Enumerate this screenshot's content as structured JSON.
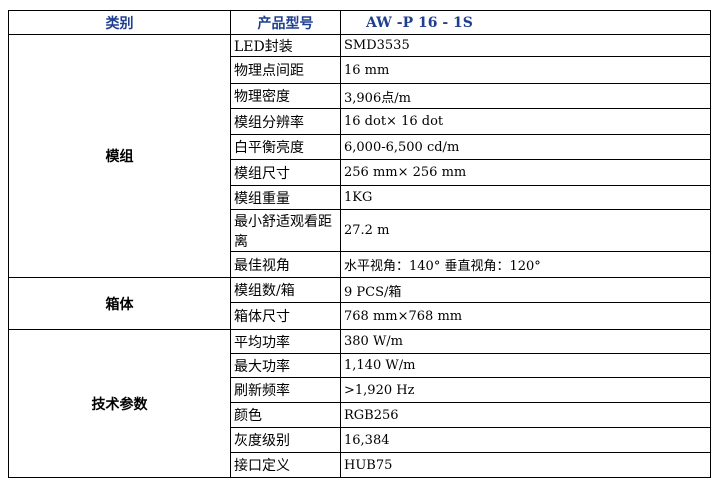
{
  "header": {
    "category": "类别",
    "model_label": "产品型号",
    "model_value": "AW -P 16 - 1S"
  },
  "groups": [
    {
      "name": "模组",
      "rows": [
        {
          "label": "LED封装",
          "value": "SMD3535"
        },
        {
          "label": "物理点间距",
          "value": "16 mm"
        },
        {
          "label": "物理密度",
          "value": "3,906点/m"
        },
        {
          "label": "模组分辨率",
          "value": "16 dot× 16 dot"
        },
        {
          "label": "白平衡亮度",
          "value": "6,000-6,500 cd/m"
        },
        {
          "label": "模组尺寸",
          "value": "256 mm× 256 mm"
        },
        {
          "label": "模组重量",
          "value": "1KG"
        },
        {
          "label": "最小舒适观看距离",
          "value": "27.2 m"
        },
        {
          "label": "最佳视角",
          "value": "水平视角：140° 垂直视角：120°"
        }
      ]
    },
    {
      "name": "箱体",
      "rows": [
        {
          "label": "模组数/箱",
          "value": "9 PCS/箱"
        },
        {
          "label": "箱体尺寸",
          "value": "768 mm×768 mm"
        }
      ]
    },
    {
      "name": "技术参数",
      "rows": [
        {
          "label": "平均功率",
          "value": "380 W/m"
        },
        {
          "label": "最大功率",
          "value": "1,140 W/m"
        },
        {
          "label": "刷新频率",
          "value": ">1,920 Hz"
        },
        {
          "label": "颜色",
          "value": "RGB256"
        },
        {
          "label": "灰度级别",
          "value": "16,384"
        },
        {
          "label": "接口定义",
          "value": "HUB75"
        }
      ]
    }
  ]
}
